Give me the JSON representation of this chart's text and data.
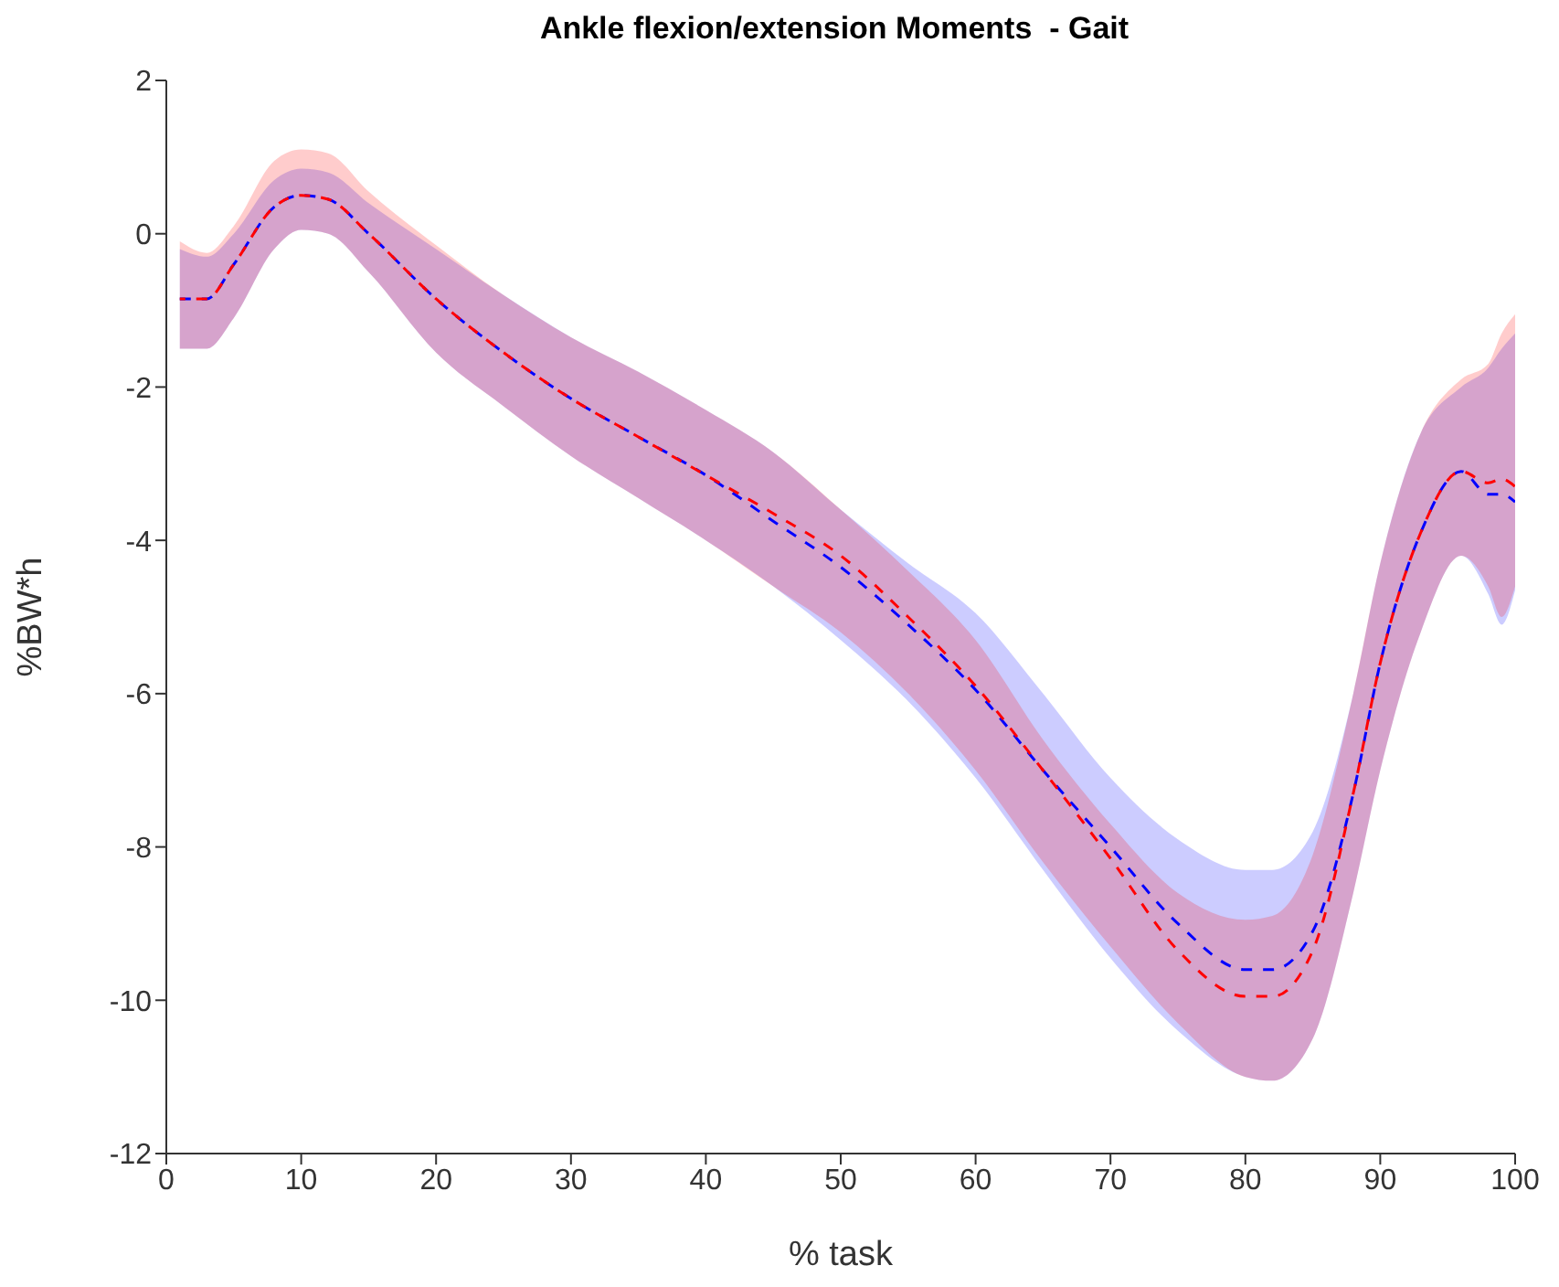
{
  "chart_data": {
    "type": "line",
    "title": "Ankle flexion/extension Moments  - Gait",
    "xlabel": "% task",
    "ylabel": "%BW*h",
    "x": [
      1,
      3,
      5,
      8,
      10,
      12,
      15,
      20,
      25,
      30,
      35,
      40,
      45,
      50,
      55,
      60,
      65,
      70,
      75,
      80,
      82,
      85,
      88,
      90,
      93,
      96,
      98,
      99,
      100
    ],
    "series": [
      {
        "color": "#0000ff",
        "values": [
          -0.85,
          -0.85,
          -0.4,
          0.35,
          0.5,
          0.45,
          0.0,
          -0.85,
          -1.55,
          -2.15,
          -2.65,
          -3.15,
          -3.75,
          -4.35,
          -5.1,
          -5.95,
          -7.0,
          -8.0,
          -9.0,
          -9.6,
          -9.6,
          -9.1,
          -7.3,
          -5.6,
          -3.9,
          -3.1,
          -3.4,
          -3.4,
          -3.5
        ],
        "lower": [
          -1.5,
          -1.5,
          -1.1,
          -0.2,
          0.05,
          0.0,
          -0.5,
          -1.55,
          -2.25,
          -2.9,
          -3.45,
          -4.0,
          -4.6,
          -5.3,
          -6.1,
          -7.1,
          -8.3,
          -9.45,
          -10.4,
          -11.0,
          -11.05,
          -10.5,
          -8.6,
          -7.0,
          -5.2,
          -4.2,
          -4.7,
          -5.1,
          -4.65
        ],
        "upper": [
          -0.2,
          -0.3,
          0.0,
          0.7,
          0.85,
          0.8,
          0.4,
          -0.2,
          -0.8,
          -1.35,
          -1.8,
          -2.3,
          -2.85,
          -3.6,
          -4.3,
          -4.95,
          -6.0,
          -7.1,
          -7.9,
          -8.3,
          -8.3,
          -7.8,
          -6.0,
          -4.3,
          -2.6,
          -2.0,
          -1.75,
          -1.5,
          -1.3
        ]
      },
      {
        "color": "#ff0000",
        "values": [
          -0.85,
          -0.85,
          -0.4,
          0.35,
          0.5,
          0.45,
          0.0,
          -0.85,
          -1.55,
          -2.15,
          -2.65,
          -3.15,
          -3.65,
          -4.2,
          -5.0,
          -5.9,
          -7.0,
          -8.15,
          -9.35,
          -9.95,
          -9.95,
          -9.35,
          -7.3,
          -5.6,
          -3.9,
          -3.1,
          -3.25,
          -3.2,
          -3.3
        ],
        "lower": [
          -1.5,
          -1.5,
          -1.1,
          -0.2,
          0.05,
          0.0,
          -0.5,
          -1.55,
          -2.25,
          -2.9,
          -3.45,
          -4.0,
          -4.6,
          -5.2,
          -6.0,
          -7.0,
          -8.2,
          -9.3,
          -10.3,
          -11.0,
          -11.05,
          -10.5,
          -8.6,
          -7.0,
          -5.2,
          -4.2,
          -4.6,
          -5.0,
          -4.6
        ],
        "upper": [
          -0.1,
          -0.25,
          0.1,
          0.95,
          1.1,
          1.05,
          0.55,
          -0.15,
          -0.8,
          -1.35,
          -1.8,
          -2.3,
          -2.85,
          -3.6,
          -4.4,
          -5.3,
          -6.6,
          -7.7,
          -8.6,
          -8.95,
          -8.9,
          -8.1,
          -6.0,
          -4.3,
          -2.6,
          -1.9,
          -1.7,
          -1.3,
          -1.05
        ]
      }
    ],
    "xlim": [
      0,
      100
    ],
    "xticks": [
      0,
      10,
      20,
      30,
      40,
      50,
      60,
      70,
      80,
      90,
      100
    ],
    "ylim": [
      -12,
      2
    ],
    "yticks": [
      -12,
      -10,
      -8,
      -6,
      -4,
      -2,
      0,
      2
    ],
    "grid": false,
    "legend": false,
    "marker": "none",
    "line_style": "dashed"
  }
}
